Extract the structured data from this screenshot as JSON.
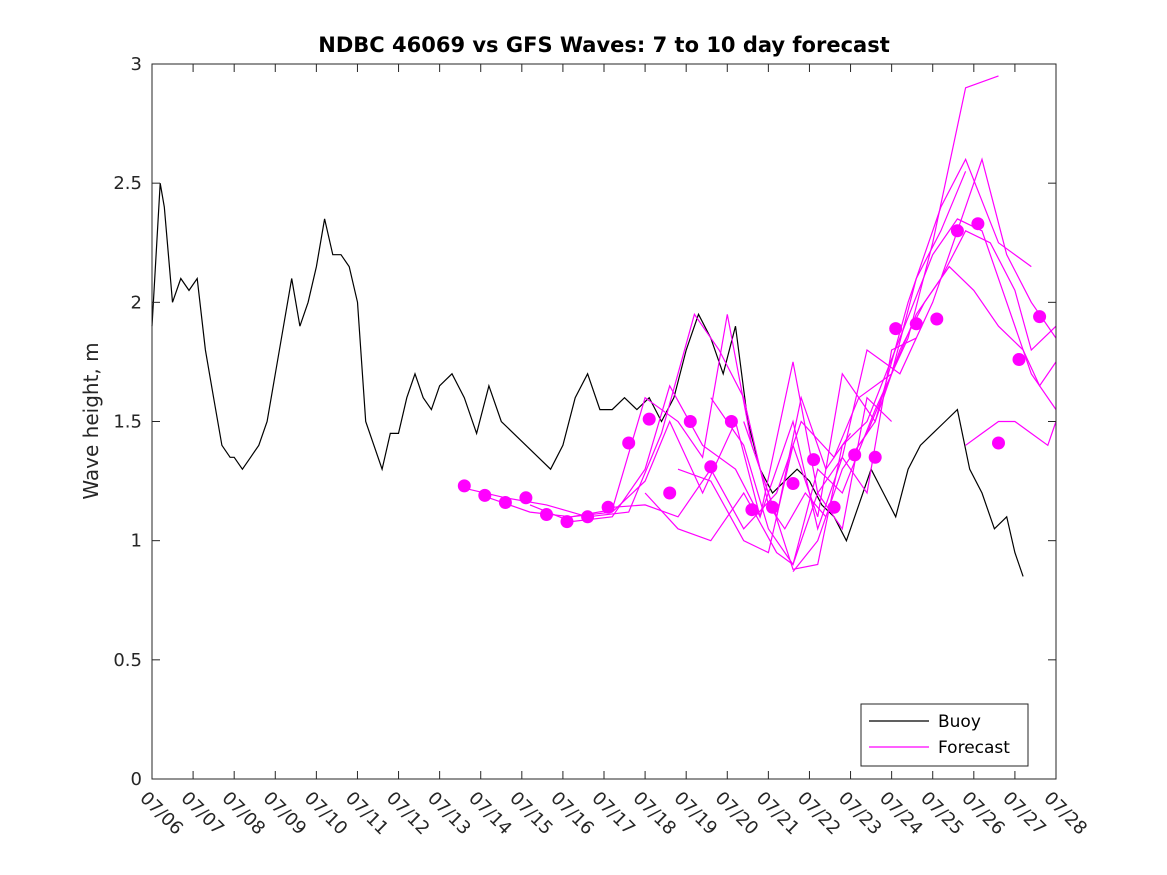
{
  "chart_data": {
    "type": "line",
    "title": "NDBC 46069 vs GFS Waves: 7 to 10 day forecast",
    "xlabel": "",
    "ylabel": "Wave height, m",
    "ylim": [
      0,
      3
    ],
    "yticks": [
      0,
      0.5,
      1,
      1.5,
      2,
      2.5,
      3
    ],
    "xlim": [
      6,
      28
    ],
    "xtick_labels": [
      "07/06",
      "07/07",
      "07/08",
      "07/09",
      "07/10",
      "07/11",
      "07/12",
      "07/13",
      "07/14",
      "07/15",
      "07/16",
      "07/17",
      "07/18",
      "07/19",
      "07/20",
      "07/21",
      "07/22",
      "07/23",
      "07/24",
      "07/25",
      "07/26",
      "07/27",
      "07/28"
    ],
    "x_units": "day of July",
    "grid": false,
    "legend": {
      "position": "bottom-right",
      "entries": [
        "Buoy",
        "Forecast"
      ]
    },
    "colors": {
      "buoy": "#000000",
      "forecast": "#ff00ff"
    },
    "series": [
      {
        "name": "Buoy",
        "style": "line",
        "x": [
          6.0,
          6.1,
          6.2,
          6.3,
          6.4,
          6.5,
          6.7,
          6.9,
          7.1,
          7.3,
          7.5,
          7.7,
          7.9,
          8.0,
          8.2,
          8.4,
          8.6,
          8.8,
          9.0,
          9.2,
          9.4,
          9.6,
          9.8,
          10.0,
          10.2,
          10.4,
          10.6,
          10.8,
          11.0,
          11.2,
          11.4,
          11.6,
          11.8,
          12.0,
          12.2,
          12.4,
          12.6,
          12.8,
          13.0,
          13.3,
          13.6,
          13.9,
          14.2,
          14.5,
          14.8,
          15.1,
          15.4,
          15.7,
          16.0,
          16.3,
          16.6,
          16.9,
          17.2,
          17.5,
          17.8,
          18.1,
          18.4,
          18.7,
          19.0,
          19.3,
          19.6,
          19.9,
          20.2,
          20.5,
          20.8,
          21.1,
          21.4,
          21.7,
          22.0,
          22.3,
          22.6,
          22.9,
          23.2,
          23.5,
          23.8,
          24.1,
          24.4,
          24.7,
          25.0,
          25.3,
          25.6,
          25.9,
          26.2,
          26.5,
          26.8,
          27.0,
          27.2
        ],
        "y": [
          1.9,
          2.2,
          2.5,
          2.4,
          2.2,
          2.0,
          2.1,
          2.05,
          2.1,
          1.8,
          1.6,
          1.4,
          1.35,
          1.35,
          1.3,
          1.35,
          1.4,
          1.5,
          1.7,
          1.9,
          2.1,
          1.9,
          2.0,
          2.15,
          2.35,
          2.2,
          2.2,
          2.15,
          2.0,
          1.5,
          1.4,
          1.3,
          1.45,
          1.45,
          1.6,
          1.7,
          1.6,
          1.55,
          1.65,
          1.7,
          1.6,
          1.45,
          1.65,
          1.5,
          1.45,
          1.4,
          1.35,
          1.3,
          1.4,
          1.6,
          1.7,
          1.55,
          1.55,
          1.6,
          1.55,
          1.6,
          1.5,
          1.6,
          1.8,
          1.95,
          1.85,
          1.7,
          1.9,
          1.5,
          1.3,
          1.2,
          1.25,
          1.3,
          1.25,
          1.15,
          1.1,
          1.0,
          1.15,
          1.3,
          1.2,
          1.1,
          1.3,
          1.4,
          1.45,
          1.5,
          1.55,
          1.3,
          1.2,
          1.05,
          1.1,
          0.95,
          0.85
        ]
      },
      {
        "name": "Forecast",
        "style": "lines",
        "runs": [
          {
            "x": [
              13.6,
              14.6,
              15.6,
              16.6,
              17.6,
              18.4,
              19.2,
              19.8,
              20.4,
              21.0,
              21.4,
              21.9,
              22.4
            ],
            "y": [
              1.22,
              1.18,
              1.15,
              1.1,
              1.12,
              1.45,
              1.95,
              1.8,
              1.6,
              1.15,
              1.05,
              1.2,
              1.1
            ]
          },
          {
            "x": [
              14.2,
              15.2,
              16.2,
              17.2,
              18.0,
              18.8,
              19.4,
              20.0,
              20.6,
              21.2,
              21.8,
              22.4,
              23.0
            ],
            "y": [
              1.18,
              1.12,
              1.1,
              1.13,
              1.6,
              1.5,
              1.35,
              1.95,
              1.4,
              1.1,
              1.6,
              1.3,
              1.45
            ]
          },
          {
            "x": [
              15.2,
              16.2,
              17.2,
              18.0,
              18.6,
              19.4,
              20.2,
              20.8,
              21.6,
              22.2,
              22.8,
              23.4,
              24.0
            ],
            "y": [
              1.15,
              1.08,
              1.1,
              1.3,
              1.65,
              1.4,
              1.3,
              1.1,
              1.75,
              1.2,
              1.05,
              1.6,
              1.5
            ]
          },
          {
            "x": [
              16.2,
              17.2,
              18.0,
              18.6,
              19.4,
              20.2,
              20.8,
              21.6,
              22.2,
              22.8,
              23.4,
              24.0,
              24.6
            ],
            "y": [
              1.1,
              1.12,
              1.25,
              1.5,
              1.2,
              1.5,
              1.1,
              1.5,
              1.05,
              1.35,
              1.2,
              1.8,
              1.85
            ]
          },
          {
            "x": [
              17.2,
              18.0,
              18.8,
              19.6,
              20.4,
              21.2,
              21.8,
              22.6,
              23.2,
              24.0,
              24.6,
              25.2,
              25.8
            ],
            "y": [
              1.14,
              1.15,
              1.1,
              1.3,
              1.05,
              1.2,
              1.5,
              1.35,
              1.6,
              1.7,
              2.1,
              2.3,
              2.55
            ]
          },
          {
            "x": [
              18.0,
              18.8,
              19.6,
              20.4,
              21.2,
              21.6,
              22.2,
              22.8,
              23.6,
              24.4,
              25.0,
              25.8,
              26.6
            ],
            "y": [
              1.2,
              1.05,
              1.0,
              1.2,
              0.95,
              0.9,
              1.3,
              1.2,
              1.55,
              1.85,
              2.25,
              2.9,
              2.95
            ]
          },
          {
            "x": [
              18.8,
              19.6,
              20.4,
              21.0,
              21.6,
              22.2,
              22.8,
              23.6,
              24.4,
              25.2,
              25.8,
              26.6,
              27.4
            ],
            "y": [
              1.3,
              1.25,
              1.0,
              0.95,
              1.4,
              1.1,
              1.7,
              1.5,
              2.0,
              2.4,
              2.6,
              2.25,
              2.15
            ]
          },
          {
            "x": [
              19.6,
              20.4,
              21.0,
              21.6,
              22.2,
              22.8,
              23.4,
              24.2,
              25.0,
              25.6,
              26.2,
              26.8,
              27.4,
              28.0
            ],
            "y": [
              1.6,
              1.4,
              1.05,
              0.9,
              1.2,
              1.35,
              1.8,
              1.7,
              2.0,
              2.3,
              2.6,
              2.2,
              2.0,
              1.85
            ]
          },
          {
            "x": [
              20.4,
              21.0,
              21.6,
              22.2,
              22.8,
              23.4,
              24.2,
              25.0,
              25.6,
              26.2,
              26.8,
              27.4,
              28.0
            ],
            "y": [
              1.5,
              1.2,
              0.88,
              0.9,
              1.4,
              1.5,
              1.85,
              2.2,
              2.35,
              2.3,
              2.0,
              1.7,
              1.55
            ]
          },
          {
            "x": [
              21.6,
              22.2,
              22.8,
              23.4,
              24.0,
              24.6,
              25.2,
              25.8,
              26.4,
              27.0,
              27.4,
              28.0
            ],
            "y": [
              0.87,
              1.0,
              1.3,
              1.45,
              1.7,
              1.95,
              2.1,
              2.3,
              2.25,
              2.05,
              1.8,
              1.9
            ]
          },
          {
            "x": [
              23.0,
              23.6,
              24.2,
              24.8,
              25.4,
              26.0,
              26.6,
              27.2,
              27.6,
              28.0
            ],
            "y": [
              1.35,
              1.5,
              1.8,
              2.0,
              2.15,
              2.05,
              1.9,
              1.8,
              1.65,
              1.75
            ]
          },
          {
            "x": [
              25.8,
              26.2,
              26.6,
              27.0,
              27.4,
              27.8,
              28.0
            ],
            "y": [
              1.4,
              1.45,
              1.5,
              1.5,
              1.45,
              1.4,
              1.5
            ]
          }
        ]
      },
      {
        "name": "Forecast points",
        "style": "markers",
        "x": [
          13.6,
          14.1,
          14.6,
          15.1,
          15.6,
          16.1,
          16.6,
          17.1,
          17.6,
          18.1,
          18.6,
          19.1,
          19.6,
          20.1,
          20.6,
          21.1,
          21.6,
          22.1,
          22.6,
          23.1,
          23.6,
          24.1,
          24.6,
          25.1,
          25.6,
          26.1,
          26.6,
          27.1,
          27.6
        ],
        "y": [
          1.23,
          1.19,
          1.16,
          1.18,
          1.11,
          1.08,
          1.1,
          1.14,
          1.41,
          1.51,
          1.2,
          1.5,
          1.31,
          1.5,
          1.13,
          1.14,
          1.24,
          1.34,
          1.14,
          1.36,
          1.35,
          1.89,
          1.91,
          1.93,
          2.3,
          2.33,
          1.41,
          1.76,
          1.94
        ]
      }
    ]
  }
}
